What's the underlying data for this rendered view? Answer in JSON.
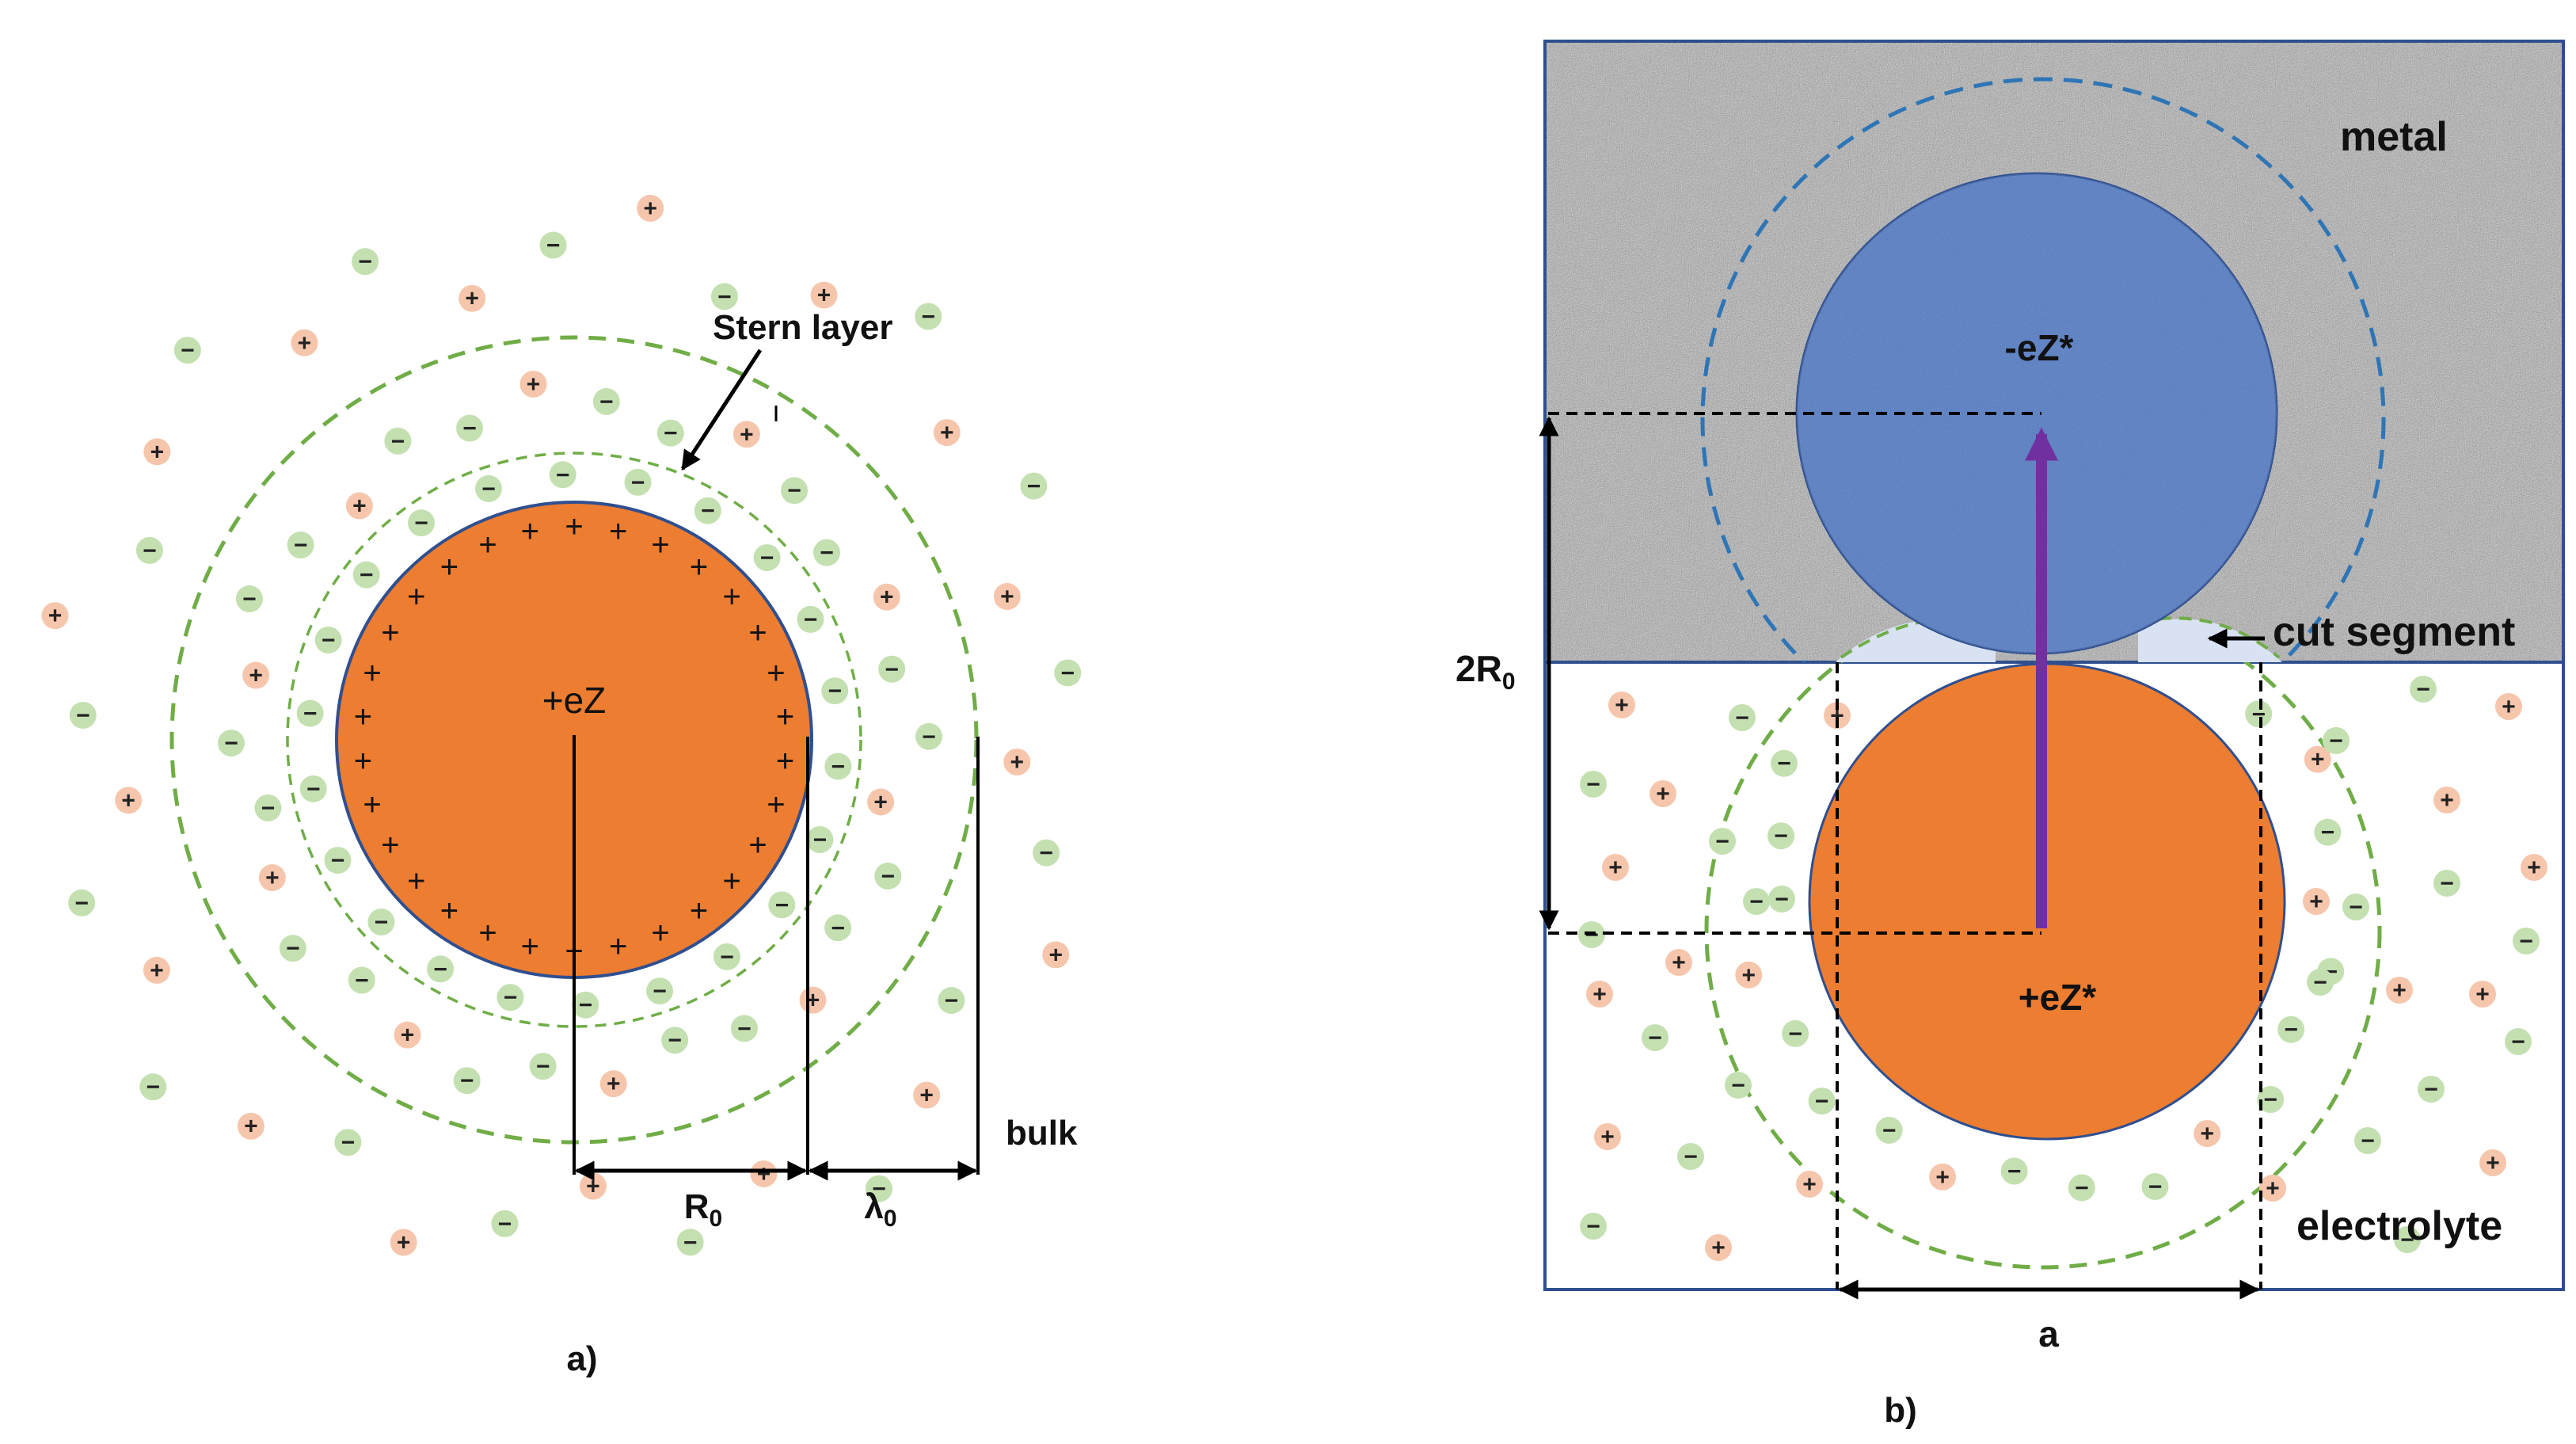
{
  "panel_a": {
    "caption": "a)",
    "center_charge": "+eZ",
    "stern_label": "Stern layer",
    "radius_label": "R",
    "radius_sub": "0",
    "lambda_label": "λ",
    "lambda_sub": "0",
    "bulk_label": "bulk",
    "surface_sign": "+",
    "cation_sign": "+",
    "anion_sign": "−"
  },
  "panel_b": {
    "caption": "b)",
    "metal_label": "metal",
    "electrolyte_label": "electrolyte",
    "image_charge": "-eZ*",
    "real_charge": "+eZ*",
    "cut_label": "cut segment",
    "distance_label": "2R",
    "distance_sub": "0",
    "width_label": "a",
    "cation_sign": "+",
    "anion_sign": "−"
  },
  "colors": {
    "particle": "#ed7d31",
    "image_particle": "#4f73b8",
    "outline": "#2f4f8f",
    "cation": "#f6c6ac",
    "anion": "#c4e0b1",
    "dashed_green": "#70ad47",
    "dashed_blue": "#2e75b6",
    "dipole_arrow": "#7030a0",
    "metal": "#a8a8a8"
  }
}
